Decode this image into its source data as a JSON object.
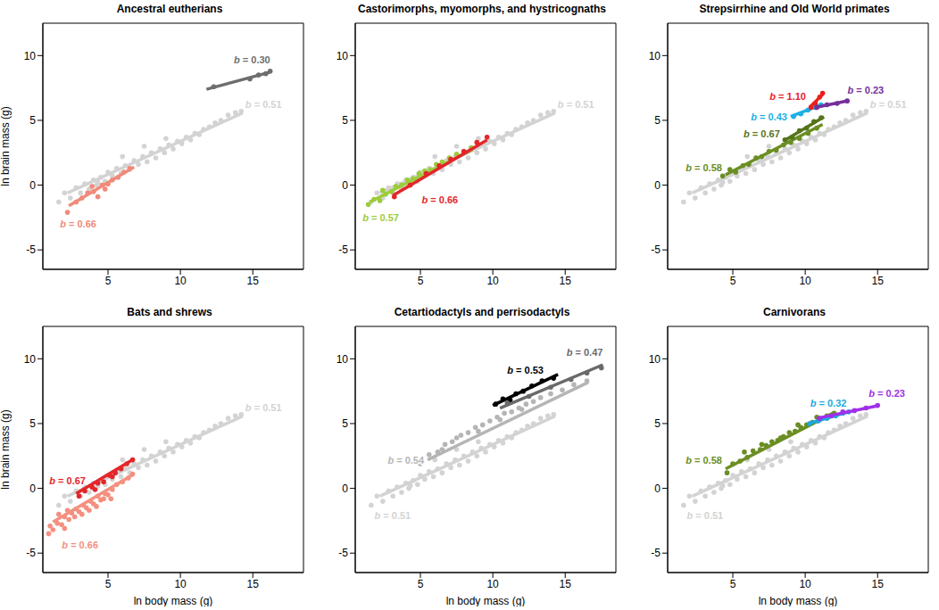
{
  "chart_data": {
    "type": "scatter",
    "x_label": "ln body mass (g)",
    "y_label": "ln brain mass (g)",
    "xlim": [
      0.5,
      18.5
    ],
    "ylim": [
      -6.5,
      12.5
    ],
    "xticks": [
      5,
      10,
      15
    ],
    "yticks": [
      -5,
      0,
      5,
      10
    ],
    "reference": {
      "name": "b = 0.51",
      "color": "#d3d3d3",
      "x": [
        1.6,
        2.0,
        2.4,
        2.8,
        3.1,
        3.4,
        3.7,
        4.0,
        4.2,
        4.5,
        4.8,
        5.0,
        5.3,
        5.6,
        5.9,
        6.2,
        6.5,
        6.8,
        7.1,
        7.4,
        7.7,
        8.0,
        8.3,
        8.6,
        8.9,
        9.2,
        9.5,
        9.8,
        10.1,
        10.4,
        10.7,
        11.0,
        11.3,
        11.6,
        12.0,
        12.4,
        12.8,
        13.3,
        13.8,
        14.2,
        4.3,
        6.0,
        7.5,
        9.0
      ],
      "y": [
        -1.3,
        -0.6,
        -1.0,
        -0.2,
        -0.6,
        0.1,
        -0.3,
        0.4,
        0.0,
        0.6,
        0.3,
        1.0,
        0.7,
        1.3,
        0.9,
        1.5,
        1.2,
        1.9,
        1.6,
        2.2,
        1.8,
        2.5,
        2.1,
        2.8,
        2.5,
        3.1,
        2.8,
        3.4,
        3.2,
        3.7,
        3.5,
        4.0,
        3.9,
        4.3,
        4.5,
        4.8,
        5.0,
        5.4,
        5.6,
        5.7,
        0.2,
        2.2,
        3.0,
        3.6
      ],
      "fit": {
        "x": [
          2.2,
          14.3
        ],
        "y": [
          -0.6,
          5.57
        ]
      }
    },
    "panels": [
      {
        "title": "Ancestral eutherians",
        "series": [
          {
            "name": "b = 0.66",
            "color": "#f08a7a",
            "x": [
              2.2,
              2.8,
              3.2,
              3.6,
              4.0,
              4.3,
              4.6,
              5.0,
              5.3,
              5.7,
              6.1,
              6.5,
              3.9,
              4.8
            ],
            "y": [
              -2.1,
              -1.3,
              -1.0,
              -0.6,
              -0.5,
              -0.9,
              0.0,
              0.1,
              0.4,
              0.6,
              1.0,
              1.3,
              -0.1,
              -0.3
            ],
            "fit": {
              "x": [
                2.3,
                6.8
              ],
              "y": [
                -1.6,
                1.4
              ]
            }
          },
          {
            "name": "b = 0.30",
            "color": "#6e6e6e",
            "x": [
              12.3,
              14.8,
              15.4,
              15.9,
              16.2
            ],
            "y": [
              7.6,
              8.2,
              8.5,
              8.6,
              8.8
            ],
            "fit": {
              "x": [
                11.8,
                16.2
              ],
              "y": [
                7.4,
                8.72
              ]
            }
          }
        ]
      },
      {
        "title": "Castorimorphs, myomorphs, and hystricognaths",
        "series": [
          {
            "name": "b = 0.57",
            "color": "#9ccc3c",
            "x": [
              1.4,
              1.8,
              2.2,
              2.6,
              3.0,
              3.3,
              3.7,
              4.1,
              4.5,
              4.9,
              5.3,
              5.7,
              6.1,
              6.5,
              7.0,
              7.5,
              8.0,
              8.5,
              2.4,
              4.3
            ],
            "y": [
              -1.5,
              -1.1,
              -1.2,
              -0.7,
              -0.5,
              -0.1,
              0.0,
              0.4,
              0.5,
              0.9,
              1.1,
              1.2,
              1.6,
              1.8,
              2.1,
              2.4,
              2.6,
              2.9,
              -0.4,
              0.1
            ],
            "fit": {
              "x": [
                1.5,
                8.6
              ],
              "y": [
                -1.3,
                2.75
              ]
            }
          },
          {
            "name": "b = 0.66",
            "color": "#e3262a",
            "x": [
              3.2,
              4.3,
              5.4,
              6.3,
              7.1,
              8.0,
              8.9,
              9.6
            ],
            "y": [
              -0.9,
              0.0,
              0.9,
              1.5,
              2.0,
              2.6,
              3.3,
              3.7
            ],
            "fit": {
              "x": [
                3.1,
                9.6
              ],
              "y": [
                -0.8,
                3.49
              ]
            }
          }
        ]
      },
      {
        "title": "Strepsirrhine and Old World primates",
        "series": [
          {
            "name": "b = 0.58",
            "color": "#6b8e23",
            "x": [
              4.3,
              4.8,
              5.2,
              5.7,
              6.1,
              6.6,
              7.0,
              7.5,
              8.0,
              8.5,
              9.0,
              9.6,
              10.2,
              10.8
            ],
            "y": [
              0.7,
              1.2,
              1.0,
              1.5,
              1.6,
              2.1,
              2.2,
              2.6,
              2.7,
              3.1,
              3.3,
              3.6,
              4.0,
              4.4
            ],
            "fit": {
              "x": [
                4.5,
                11.2
              ],
              "y": [
                0.8,
                4.69
              ]
            }
          },
          {
            "name": "b = 0.67",
            "color": "#55741a",
            "x": [
              8.6,
              9.1,
              9.6,
              10.1,
              10.6,
              11.1
            ],
            "y": [
              3.5,
              3.7,
              4.2,
              4.4,
              4.9,
              5.2
            ],
            "fit": {
              "x": [
                8.5,
                11.3
              ],
              "y": [
                3.4,
                5.28
              ]
            }
          },
          {
            "name": "b = 0.43",
            "color": "#1cb0e6",
            "x": [
              9.2,
              9.7,
              10.2,
              10.7,
              11.1
            ],
            "y": [
              5.3,
              5.5,
              5.8,
              6.0,
              6.2
            ],
            "fit": {
              "x": [
                9.0,
                11.2
              ],
              "y": [
                5.3,
                6.25
              ]
            }
          },
          {
            "name": "b = 1.10",
            "color": "#e8201e",
            "x": [
              10.4,
              10.7,
              11.0,
              11.2
            ],
            "y": [
              6.0,
              6.3,
              6.8,
              7.1
            ],
            "fit": {
              "x": [
                10.3,
                11.2
              ],
              "y": [
                6.0,
                6.99
              ]
            }
          },
          {
            "name": "b = 0.23",
            "color": "#74309a",
            "x": [
              10.8,
              11.5,
              12.2,
              12.9
            ],
            "y": [
              6.0,
              6.2,
              6.3,
              6.5
            ],
            "fit": {
              "x": [
                10.7,
                12.8
              ],
              "y": [
                6.0,
                6.48
              ]
            }
          }
        ]
      },
      {
        "title": "Bats and shrews",
        "series": [
          {
            "name": "b = 0.66",
            "color": "#f4907f",
            "x": [
              0.9,
              1.2,
              1.5,
              1.8,
              2.0,
              2.3,
              2.5,
              2.8,
              3.0,
              3.3,
              3.5,
              3.8,
              4.0,
              4.3,
              4.5,
              4.8,
              5.0,
              5.3,
              5.6,
              6.0,
              6.4,
              6.7,
              1.6,
              2.2,
              2.7,
              3.2,
              3.7,
              4.2,
              4.7,
              5.2,
              1.0,
              2.0
            ],
            "y": [
              -3.5,
              -3.2,
              -2.7,
              -2.8,
              -2.2,
              -2.4,
              -1.9,
              -1.6,
              -1.8,
              -1.3,
              -1.5,
              -1.0,
              -1.2,
              -0.6,
              -0.9,
              -0.4,
              -0.5,
              -0.1,
              0.3,
              0.5,
              0.8,
              1.1,
              -2.0,
              -1.7,
              -2.2,
              -2.0,
              -1.7,
              -1.4,
              -0.8,
              -0.8,
              -2.9,
              -3.1
            ],
            "fit": {
              "x": [
                1.2,
                6.7
              ],
              "y": [
                -2.6,
                1.03
              ]
            }
          },
          {
            "name": "b = 0.67",
            "color": "#e3262a",
            "x": [
              3.0,
              3.4,
              3.9,
              4.3,
              4.7,
              5.1,
              5.5,
              5.9,
              6.3,
              6.7,
              4.1,
              5.3
            ],
            "y": [
              -0.6,
              -0.2,
              0.1,
              0.4,
              0.5,
              1.0,
              1.2,
              1.5,
              1.9,
              2.2,
              -0.1,
              0.9
            ],
            "fit": {
              "x": [
                2.8,
                6.8
              ],
              "y": [
                -0.4,
                2.28
              ]
            }
          }
        ]
      },
      {
        "title": "Cetartiodactyls and perrisodactyls",
        "series": [
          {
            "name": "b = 0.54",
            "color": "#b5b5b5",
            "x": [
              5.0,
              5.6,
              6.2,
              6.7,
              7.2,
              7.8,
              8.3,
              8.8,
              9.3,
              9.8,
              10.3,
              10.8,
              11.3,
              11.8,
              12.3,
              12.8,
              13.3,
              14.0,
              14.8,
              15.6,
              16.5,
              6.5,
              7.5,
              9.0,
              10.5,
              12.0
            ],
            "y": [
              1.9,
              2.6,
              2.8,
              3.4,
              3.6,
              4.1,
              4.3,
              4.7,
              4.9,
              5.2,
              5.5,
              5.8,
              5.9,
              6.2,
              6.5,
              6.7,
              7.0,
              7.3,
              7.6,
              8.0,
              8.3,
              3.0,
              3.9,
              4.4,
              5.3,
              6.1
            ],
            "fit": {
              "x": [
                5.5,
                16.6
              ],
              "y": [
                2.2,
                8.19
              ]
            }
          },
          {
            "name": "b = 0.53",
            "color": "#000000",
            "x": [
              10.2,
              10.7,
              11.2,
              11.6,
              12.1,
              12.7,
              13.4,
              14.2
            ],
            "y": [
              6.5,
              6.9,
              6.8,
              7.3,
              7.5,
              7.9,
              8.3,
              8.5
            ],
            "fit": {
              "x": [
                10.0,
                14.5
              ],
              "y": [
                6.4,
                8.79
              ]
            }
          },
          {
            "name": "b = 0.47",
            "color": "#6a6a6a",
            "x": [
              11.0,
              12.5,
              14.0,
              15.4,
              16.5,
              17.5
            ],
            "y": [
              6.6,
              7.1,
              7.8,
              8.4,
              8.9,
              9.3
            ],
            "fit": {
              "x": [
                10.5,
                17.6
              ],
              "y": [
                6.2,
                9.54
              ]
            }
          }
        ]
      },
      {
        "title": "Carnivorans",
        "series": [
          {
            "name": "b = 0.58",
            "color": "#6b8e23",
            "x": [
              4.6,
              5.0,
              5.5,
              6.0,
              6.4,
              6.9,
              7.3,
              7.7,
              8.1,
              8.5,
              8.9,
              9.3,
              9.7,
              10.1,
              10.5,
              11.0,
              11.5,
              12.0,
              5.8,
              7.0,
              8.3,
              9.5,
              10.8
            ],
            "y": [
              1.2,
              1.9,
              2.1,
              2.4,
              2.9,
              3.0,
              3.3,
              3.6,
              3.7,
              4.0,
              4.3,
              4.4,
              4.7,
              4.9,
              5.1,
              5.3,
              5.6,
              5.8,
              2.8,
              3.4,
              3.9,
              4.9,
              5.5
            ],
            "fit": {
              "x": [
                4.5,
                12.0
              ],
              "y": [
                1.5,
                5.85
              ]
            }
          },
          {
            "name": "b = 0.32",
            "color": "#1ca8e0",
            "x": [
              10.3,
              10.9,
              11.5,
              12.1,
              12.6,
              13.0
            ],
            "y": [
              5.0,
              5.2,
              5.4,
              5.6,
              5.8,
              5.9
            ],
            "fit": {
              "x": [
                10.2,
                13.0
              ],
              "y": [
                5.0,
                5.9
              ]
            }
          },
          {
            "name": "b = 0.23",
            "color": "#a030e8",
            "x": [
              11.0,
              11.8,
              12.6,
              13.4,
              14.2,
              15.0
            ],
            "y": [
              5.4,
              5.6,
              5.9,
              6.0,
              6.2,
              6.4
            ],
            "fit": {
              "x": [
                10.8,
                15.0
              ],
              "y": [
                5.4,
                6.37
              ]
            }
          }
        ]
      }
    ]
  }
}
